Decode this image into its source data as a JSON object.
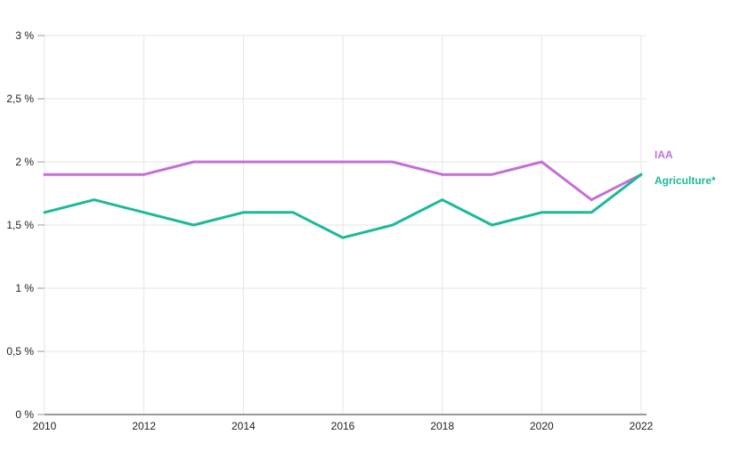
{
  "chart_data": {
    "type": "line",
    "title": "",
    "xlabel": "",
    "ylabel": "",
    "x": [
      2010,
      2011,
      2012,
      2013,
      2014,
      2015,
      2016,
      2017,
      2018,
      2019,
      2020,
      2021,
      2022
    ],
    "xlim": [
      2010,
      2022
    ],
    "ylim": [
      0,
      3
    ],
    "x_ticks": [
      2010,
      2012,
      2014,
      2016,
      2018,
      2020,
      2022
    ],
    "x_tick_labels": [
      "2010",
      "2012",
      "2014",
      "2016",
      "2018",
      "2020",
      "2022"
    ],
    "y_ticks": [
      0,
      0.5,
      1,
      1.5,
      2,
      2.5,
      3
    ],
    "y_tick_labels": [
      "0 %",
      "0,5 %",
      "1 %",
      "1,5 %",
      "2 %",
      "2,5 %",
      "3 %"
    ],
    "grid": true,
    "legend": "right, labels at line ends",
    "series": [
      {
        "name": "IAA",
        "color": "#c56fd6",
        "values": [
          1.9,
          1.9,
          1.9,
          2.0,
          2.0,
          2.0,
          2.0,
          2.0,
          1.9,
          1.9,
          2.0,
          1.7,
          1.9
        ]
      },
      {
        "name": "Agriculture*",
        "color": "#1bb99a",
        "values": [
          1.6,
          1.7,
          1.6,
          1.5,
          1.6,
          1.6,
          1.4,
          1.5,
          1.7,
          1.5,
          1.6,
          1.6,
          1.9
        ]
      }
    ]
  }
}
